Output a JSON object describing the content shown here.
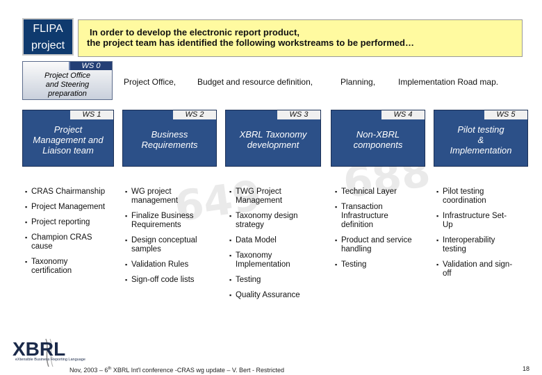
{
  "header": {
    "project_label_line1": "FLIPA",
    "project_label_line2": "project",
    "intro_line1": "In order to develop the electronic report product,",
    "intro_line2": "the project team has identified the following workstreams to be performed…"
  },
  "ws0": {
    "tab": "WS 0",
    "lines": [
      "Project Office",
      "and Steering",
      "preparation"
    ]
  },
  "descriptions": [
    "Project Office,",
    "Budget and resource definition,",
    "Planning,",
    "Implementation Road map."
  ],
  "workstreams": [
    {
      "tab": "WS 1",
      "title": [
        "Project",
        "Management and",
        "Liaison team"
      ],
      "items": [
        [
          "CRAS Chairmanship"
        ],
        [
          "Project Management"
        ],
        [
          "Project reporting"
        ],
        [
          "Champion CRAS",
          "cause"
        ],
        [
          "Taxonomy",
          "certification"
        ]
      ]
    },
    {
      "tab": "WS 2",
      "title": [
        "Business",
        "Requirements"
      ],
      "items": [
        [
          "WG project",
          "management"
        ],
        [
          "Finalize Business",
          "Requirements"
        ],
        [
          "Design conceptual",
          "samples"
        ],
        [
          "Validation Rules"
        ],
        [
          "Sign-off code lists"
        ]
      ]
    },
    {
      "tab": "WS 3",
      "title": [
        "XBRL Taxonomy",
        "development"
      ],
      "items": [
        [
          "TWG Project",
          "Management"
        ],
        [
          "Taxonomy design",
          "strategy"
        ],
        [
          "Data Model"
        ],
        [
          "Taxonomy",
          "Implementation"
        ],
        [
          "Testing"
        ],
        [
          "Quality Assurance"
        ]
      ]
    },
    {
      "tab": "WS 4",
      "title": [
        "Non-XBRL",
        "components"
      ],
      "items": [
        [
          "Technical Layer"
        ],
        [
          "Transaction",
          "Infrastructure",
          "definition"
        ],
        [
          "Product and service",
          "handling"
        ],
        [
          "Testing"
        ]
      ]
    },
    {
      "tab": "WS 5",
      "title": [
        "Pilot testing",
        "&",
        "Implementation"
      ],
      "items": [
        [
          "Pilot testing",
          "coordination"
        ],
        [
          "Infrastructure Set-",
          "Up"
        ],
        [
          "Interoperability",
          "testing"
        ],
        [
          "Validation and sign-",
          "off"
        ]
      ]
    }
  ],
  "footer": {
    "text_before": "Nov, 2003 – 6",
    "superscript": "th",
    "text_after": " XBRL Int'l conference -CRAS wg update – V. Bert - Restricted",
    "page_number": "18"
  },
  "logo": {
    "text": "XBRL",
    "tagline": "eXtensible Business Reporting Language"
  }
}
